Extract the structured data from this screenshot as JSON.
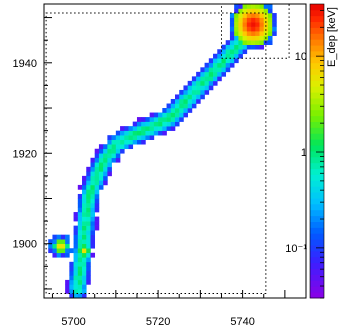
{
  "chart_data": {
    "type": "heatmap",
    "title": "",
    "xlabel": "",
    "ylabel": "",
    "zlabel": "E_dep [keV]",
    "xlim": [
      5693,
      5755
    ],
    "ylim": [
      1888,
      1953
    ],
    "zlim": [
      0.03,
      35
    ],
    "zscale": "log",
    "colormap": "rainbow (violet-blue-cyan-green-yellow-orange-red)",
    "x_ticks": [
      5700,
      5720,
      5740
    ],
    "y_ticks": [
      1900,
      1920,
      1940
    ],
    "x_tick_labels": [
      "5700",
      "5720",
      "5740"
    ],
    "y_tick_labels": [
      "1900",
      "1920",
      "1940"
    ],
    "z_tick_labels": [
      "10",
      "1",
      "10⁻¹"
    ],
    "z_ticks": [
      10,
      1,
      0.1
    ],
    "bin_size": 1,
    "track_path": [
      [
        5701,
        1890,
        1.0
      ],
      [
        5701.5,
        1894,
        1.8
      ],
      [
        5702,
        1898,
        2.5
      ],
      [
        5702.5,
        1902,
        2.0
      ],
      [
        5703,
        1906,
        1.5
      ],
      [
        5703.5,
        1910,
        1.6
      ],
      [
        5705,
        1914,
        1.8
      ],
      [
        5707,
        1918,
        2.2
      ],
      [
        5710,
        1922,
        2.0
      ],
      [
        5714,
        1924,
        2.2
      ],
      [
        5719,
        1926,
        1.8
      ],
      [
        5723,
        1928,
        2.0
      ],
      [
        5726,
        1931,
        2.2
      ],
      [
        5729,
        1934,
        2.0
      ],
      [
        5732,
        1937,
        2.2
      ],
      [
        5735,
        1940,
        1.8
      ],
      [
        5738,
        1943,
        2.0
      ],
      [
        5740,
        1945,
        2.5
      ]
    ],
    "blobs": [
      {
        "x": 5742.5,
        "y": 1948.5,
        "radius": 4.8,
        "peak": 30,
        "label": "end blob"
      },
      {
        "x": 5697,
        "y": 1899.5,
        "radius": 1.8,
        "peak": 8,
        "label": "start blob"
      },
      {
        "x": 5702.5,
        "y": 1898.5,
        "radius": 1.5,
        "peak": 6,
        "label": "kink"
      }
    ],
    "dotted_boxes": [
      {
        "x0": 5693.5,
        "x1": 5745.5,
        "y0": 1889,
        "y1": 1951
      },
      {
        "x0": 5735,
        "x1": 5751,
        "y0": 1941,
        "y1": 1953
      }
    ]
  }
}
